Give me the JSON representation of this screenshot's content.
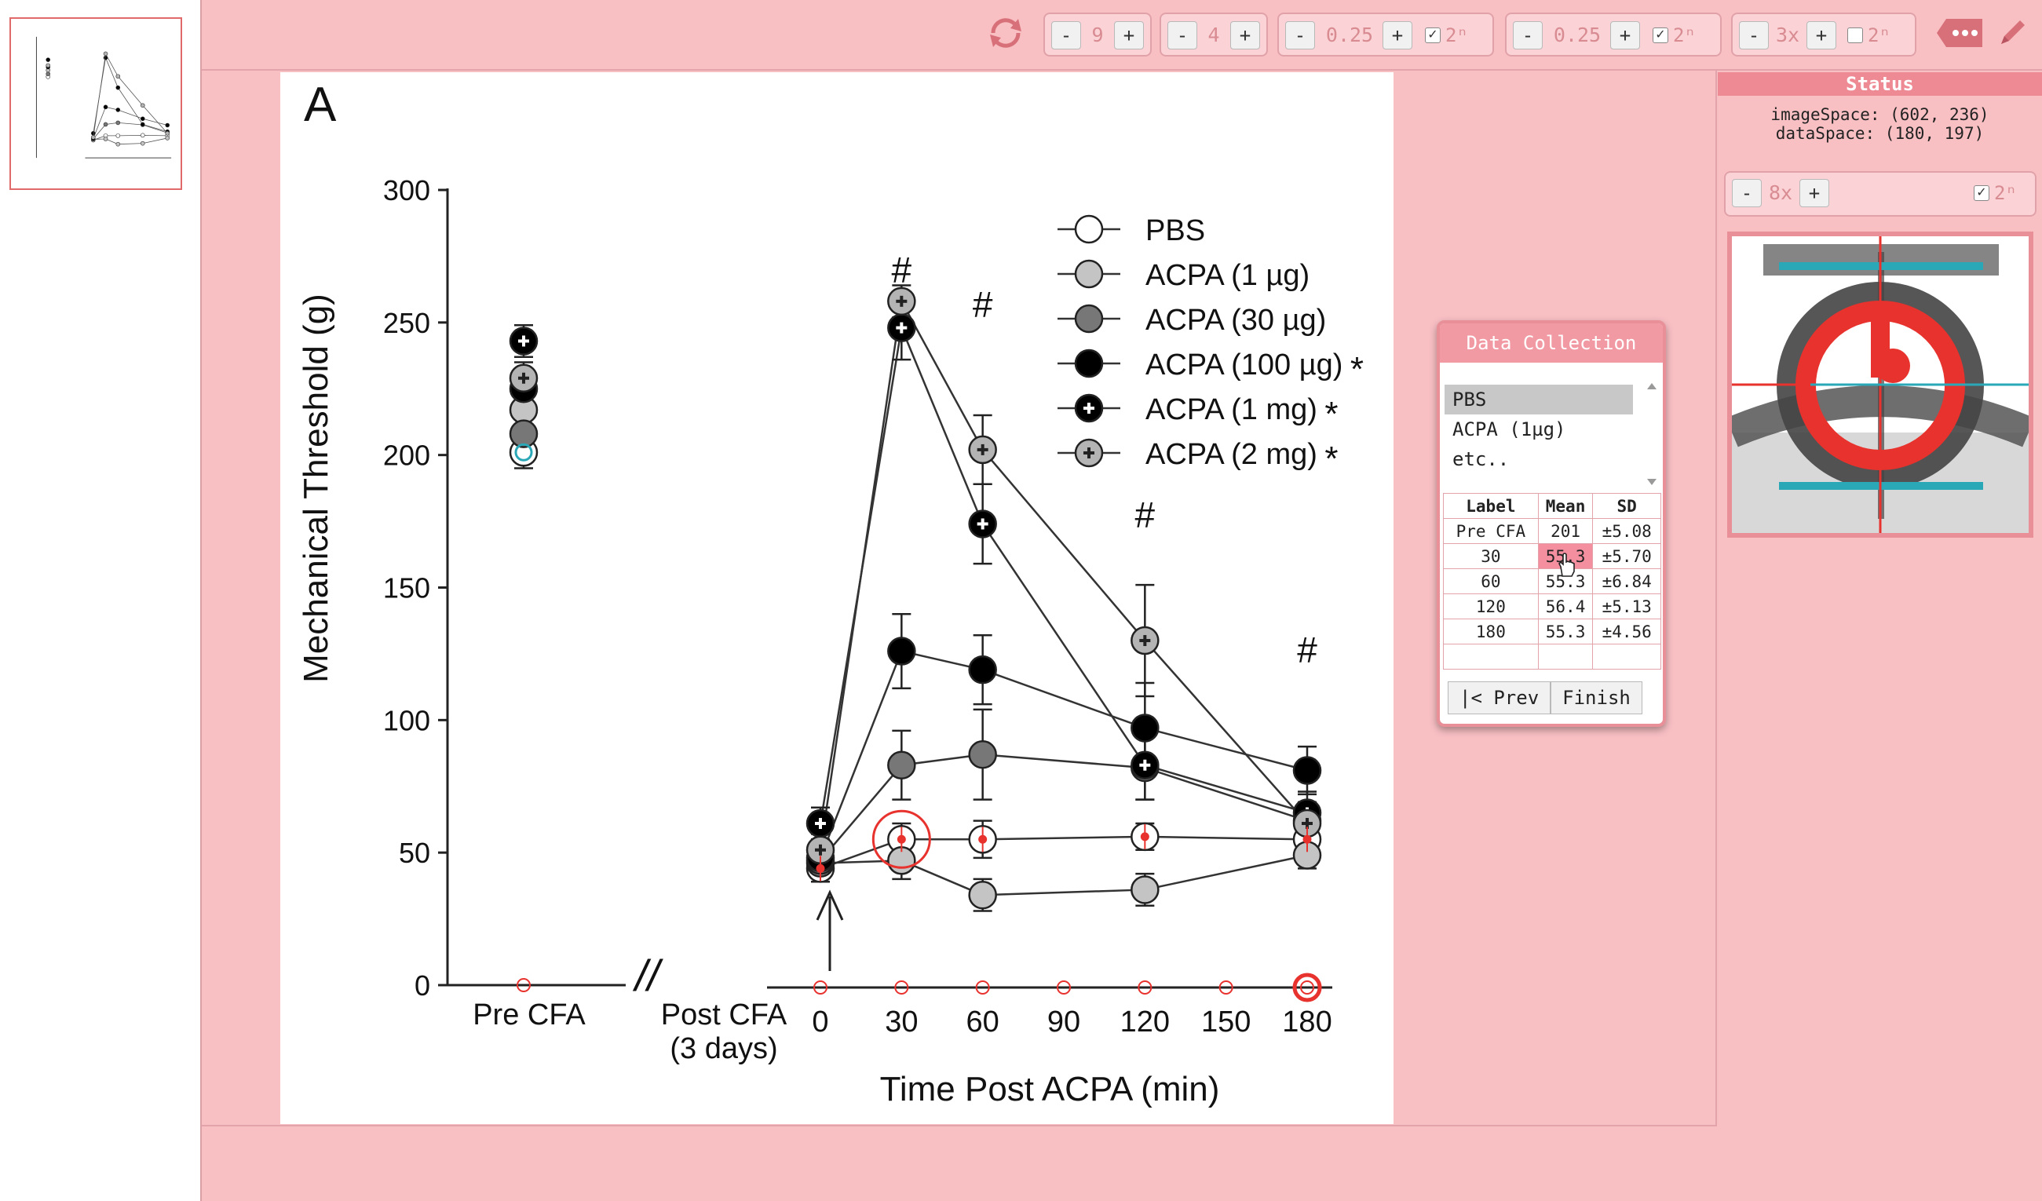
{
  "toolbar": {
    "groups": [
      {
        "value": "9",
        "power_label": ""
      },
      {
        "value": "4",
        "power_label": ""
      },
      {
        "value": "0.25",
        "checked": true,
        "power_label": "2ⁿ"
      },
      {
        "value": "0.25",
        "checked": true,
        "power_label": "2ⁿ"
      },
      {
        "value": "3x",
        "checked": false,
        "power_label": "2ⁿ"
      }
    ],
    "minus": "-",
    "plus": "+",
    "check_mark": "✓"
  },
  "chart": {
    "panel_letter": "A",
    "ylabel": "Mechanical Threshold (g)",
    "xlabel": "Time Post ACPA (min)",
    "y_ticks": [
      "0",
      "50",
      "100",
      "150",
      "200",
      "250",
      "300"
    ],
    "pre_label": "Pre CFA",
    "post_label_1": "Post CFA",
    "post_label_2": "(3 days)",
    "x_ticks": [
      "0",
      "30",
      "60",
      "90",
      "120",
      "150",
      "180"
    ],
    "hash": "#",
    "break_mark": "//",
    "star": "*"
  },
  "chart_data": {
    "type": "line",
    "ylim": [
      0,
      300
    ],
    "x": [
      0,
      30,
      60,
      120,
      180
    ],
    "x_axis_ticks": [
      0,
      30,
      60,
      90,
      120,
      150,
      180
    ],
    "series": [
      {
        "name": "PBS",
        "style": "open",
        "pre": 201,
        "values": [
          44,
          55,
          55,
          56,
          55
        ],
        "err": [
          5,
          6,
          7,
          5,
          5
        ],
        "significant": false
      },
      {
        "name": "ACPA (1 µg)",
        "style": "light",
        "pre": 217,
        "values": [
          46,
          47,
          34,
          36,
          49
        ],
        "err": [
          5,
          7,
          6,
          6,
          5
        ],
        "significant": false
      },
      {
        "name": "ACPA (30 µg)",
        "style": "dark",
        "pre": 208,
        "values": [
          47,
          83,
          87,
          82,
          62
        ],
        "err": [
          6,
          13,
          17,
          12,
          7
        ],
        "significant": false
      },
      {
        "name": "ACPA (100 µg)",
        "style": "black",
        "pre": 225,
        "values": [
          48,
          126,
          119,
          97,
          81
        ],
        "err": [
          6,
          14,
          13,
          17,
          9
        ],
        "significant": true
      },
      {
        "name": "ACPA (1 mg)",
        "style": "black-cross",
        "pre": 243,
        "values": [
          61,
          248,
          174,
          83,
          65
        ],
        "err": [
          6,
          12,
          15,
          13,
          8
        ],
        "significant": true
      },
      {
        "name": "ACPA (2 mg)",
        "style": "gray-cross",
        "pre": 229,
        "values": [
          51,
          258,
          202,
          130,
          61
        ],
        "err": [
          6,
          6,
          13,
          21,
          8
        ],
        "significant": true
      }
    ],
    "hash_at": [
      30,
      60,
      120,
      180
    ],
    "legend_position": "top-right"
  },
  "data_collection": {
    "title": "Data Collection",
    "items": [
      "PBS",
      "ACPA (1µg)",
      "etc.."
    ],
    "selected": 0,
    "columns": [
      "Label",
      "Mean",
      "SD"
    ],
    "rows": [
      [
        "Pre CFA",
        "201",
        "±5.08"
      ],
      [
        "30",
        "55.3",
        "±5.70"
      ],
      [
        "60",
        "55.3",
        "±6.84"
      ],
      [
        "120",
        "56.4",
        "±5.13"
      ],
      [
        "180",
        "55.3",
        "±4.56"
      ],
      [
        "",
        "",
        ""
      ]
    ],
    "prev_label": "|< Prev",
    "finish_label": "Finish"
  },
  "status": {
    "title": "Status",
    "image_space": "imageSpace: (602, 236)",
    "data_space": "dataSpace: (180, 197)",
    "zoom_value": "8x",
    "zoom_checked": true,
    "power_label": "2ⁿ"
  },
  "colors": {
    "accent": "#f19aa3",
    "background": "#f9c0c4",
    "highlight": "#f48fa0",
    "marker_red": "#e8322e",
    "marker_cyan": "#2aa8b8"
  }
}
